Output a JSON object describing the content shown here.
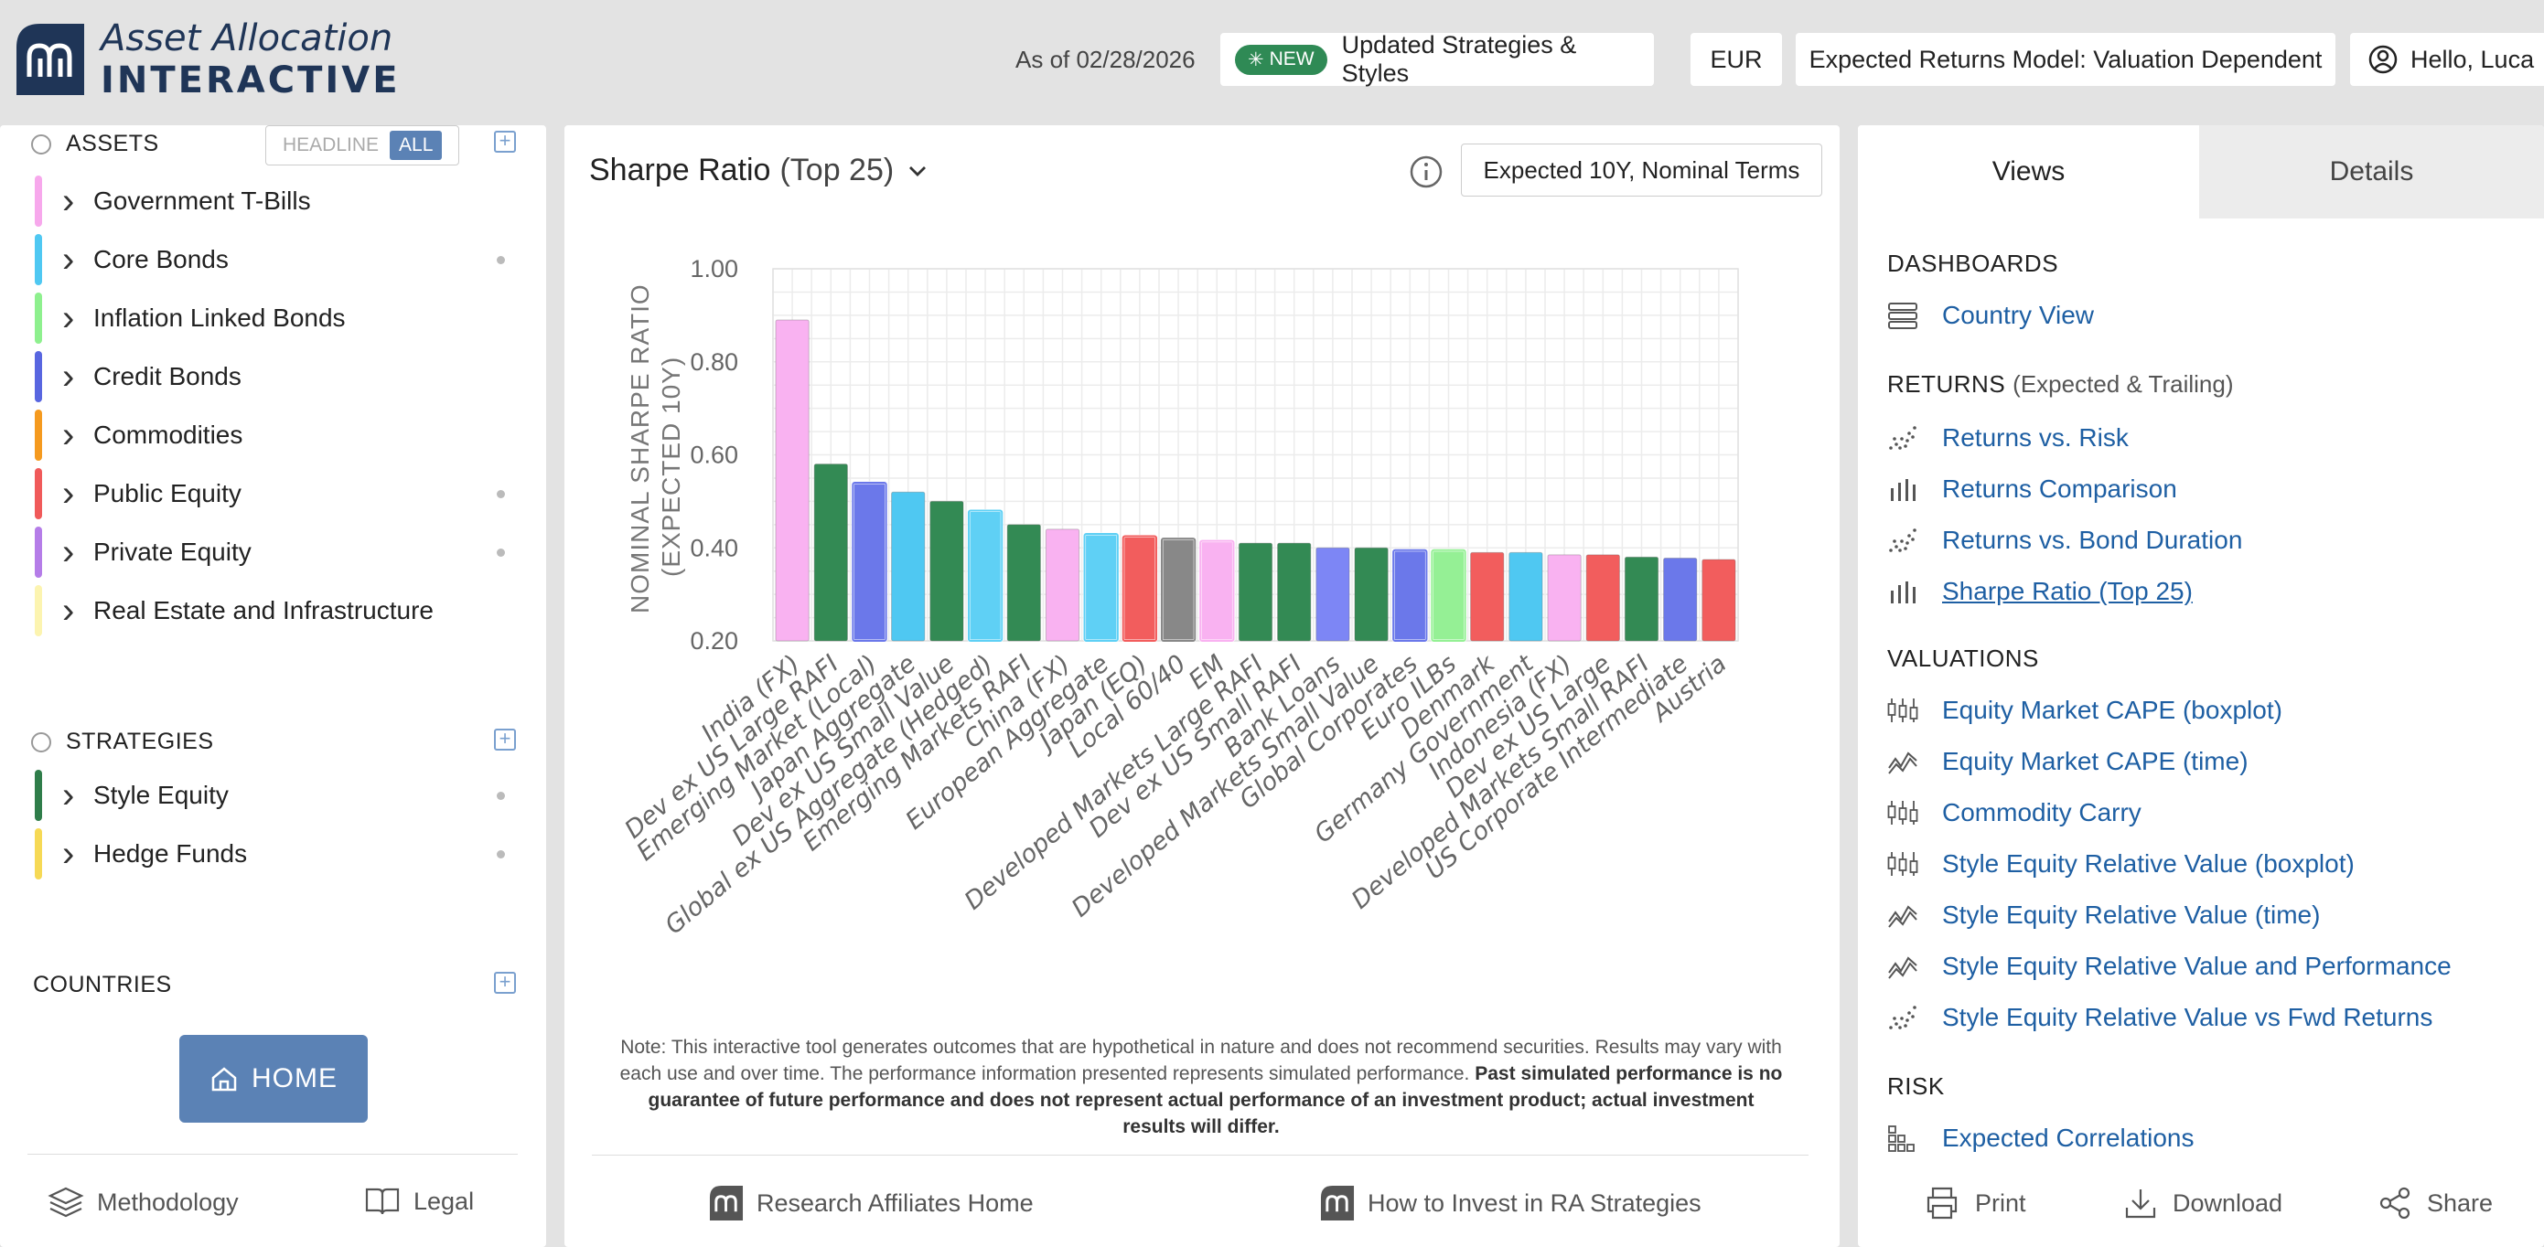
{
  "header": {
    "logo_line1": "Asset Allocation",
    "logo_line2": "INTERACTIVE",
    "as_of": "As of 02/28/2026",
    "new_badge": "NEW",
    "updated_label": "Updated Strategies & Styles",
    "currency": "EUR",
    "model_label": "Expected Returns Model: Valuation Dependent",
    "user_greeting": "Hello, Luca",
    "brand_color": "#1f3557"
  },
  "left": {
    "assets_title": "ASSETS",
    "toggle_headline": "HEADLINE",
    "toggle_all": "ALL",
    "assets": [
      {
        "label": "Government T-Bills",
        "color": "#f7a8ec",
        "dot": false
      },
      {
        "label": "Core Bonds",
        "color": "#4fc8f2",
        "dot": true
      },
      {
        "label": "Inflation Linked Bonds",
        "color": "#8ef08e",
        "dot": false
      },
      {
        "label": "Credit Bonds",
        "color": "#5866e0",
        "dot": false
      },
      {
        "label": "Commodities",
        "color": "#f59a1f",
        "dot": false
      },
      {
        "label": "Public Equity",
        "color": "#f05a5a",
        "dot": true
      },
      {
        "label": "Private Equity",
        "color": "#b57de8",
        "dot": true
      },
      {
        "label": "Real Estate and Infrastructure",
        "color": "#fcf4b0",
        "dot": false
      }
    ],
    "strategies_title": "STRATEGIES",
    "strategies": [
      {
        "label": "Style Equity",
        "color": "#2f7d4a",
        "dot": true
      },
      {
        "label": "Hedge Funds",
        "color": "#f6d955",
        "dot": true
      }
    ],
    "countries_title": "COUNTRIES",
    "home_label": "HOME",
    "methodology_label": "Methodology",
    "legal_label": "Legal"
  },
  "center": {
    "title": "Sharpe Ratio",
    "title_suffix": "(Top 25)",
    "term_button": "Expected 10Y, Nominal Terms",
    "note_plain": "Note: This interactive tool generates outcomes that are hypothetical in nature and does not recommend securities. Results may vary with each use and over time. The performance information presented represents simulated performance.",
    "note_bold": "Past simulated performance is no guarantee of future performance and does not represent actual performance of an investment product; actual investment results will differ.",
    "link_home": "Research Affiliates Home",
    "link_invest": "How to Invest in RA Strategies"
  },
  "chart_data": {
    "type": "bar",
    "ylabel_line1": "NOMINAL SHARPE RATIO",
    "ylabel_line2": "(EXPECTED 10Y)",
    "ylim": [
      0.2,
      1.0
    ],
    "yticks": [
      "1.00",
      "0.80",
      "0.60",
      "0.40",
      "0.20"
    ],
    "ytick_values": [
      1.0,
      0.8,
      0.6,
      0.4,
      0.2
    ],
    "categories": [
      "India (FX)",
      "Dev ex US Large RAFI",
      "Emerging Market (Local)",
      "Japan Aggregate",
      "Dev ex US Small Value",
      "Global ex US Aggregate (Hedged)",
      "Emerging Markets RAFI",
      "China (FX)",
      "European Aggregate",
      "Japan (EQ)",
      "Local 60/40",
      "EM",
      "Developed Markets Large RAFI",
      "Dev ex US Small RAFI",
      "Bank Loans",
      "Developed Markets Small Value",
      "Global Corporates",
      "Euro ILBs",
      "Denmark",
      "Germany Government",
      "Indonesia (FX)",
      "Dev ex US Large",
      "Developed Markets Small RAFI",
      "US Corporate Intermediate",
      "Austria"
    ],
    "values": [
      0.89,
      0.58,
      0.54,
      0.52,
      0.5,
      0.48,
      0.45,
      0.44,
      0.43,
      0.425,
      0.42,
      0.415,
      0.41,
      0.41,
      0.4,
      0.4,
      0.395,
      0.395,
      0.39,
      0.39,
      0.385,
      0.385,
      0.38,
      0.378,
      0.375
    ],
    "colors": [
      "#f9b2f1",
      "#338a54",
      "#6b78ea",
      "#4fc8f2",
      "#338a54",
      "#5fd0f5",
      "#338a54",
      "#f9b2f1",
      "#5fd0f5",
      "#f25d5d",
      "#888888",
      "#f9b2f1",
      "#338a54",
      "#338a54",
      "#7d86f5",
      "#338a54",
      "#6b78ea",
      "#95f095",
      "#f25d5d",
      "#4fc8f2",
      "#f9b2f1",
      "#f25d5d",
      "#338a54",
      "#6b78ea",
      "#f25d5d"
    ],
    "outlined": [
      false,
      false,
      true,
      false,
      false,
      true,
      false,
      false,
      true,
      true,
      true,
      true,
      false,
      false,
      false,
      false,
      true,
      true,
      false,
      false,
      false,
      false,
      false,
      false,
      false
    ],
    "grid": true
  },
  "right": {
    "tab_views": "Views",
    "tab_details": "Details",
    "dashboards_title": "DASHBOARDS",
    "dashboards": [
      {
        "label": "Country View",
        "icon": "table-stack-icon"
      }
    ],
    "returns_title": "RETURNS",
    "returns_sub": "(Expected & Trailing)",
    "returns": [
      {
        "label": "Returns vs. Risk",
        "icon": "scatter-icon"
      },
      {
        "label": "Returns Comparison",
        "icon": "bar-chart-icon"
      },
      {
        "label": "Returns vs. Bond Duration",
        "icon": "scatter-icon"
      },
      {
        "label": "Sharpe Ratio (Top 25)",
        "icon": "bar-chart-icon",
        "active": true
      }
    ],
    "valuations_title": "VALUATIONS",
    "valuations": [
      {
        "label": "Equity Market CAPE (boxplot)",
        "icon": "boxplot-icon"
      },
      {
        "label": "Equity Market CAPE (time)",
        "icon": "line-icon"
      },
      {
        "label": "Commodity Carry",
        "icon": "boxplot-icon"
      },
      {
        "label": "Style Equity Relative Value (boxplot)",
        "icon": "boxplot-icon"
      },
      {
        "label": "Style Equity Relative Value (time)",
        "icon": "line-icon"
      },
      {
        "label": "Style Equity Relative Value and Performance",
        "icon": "line-icon"
      },
      {
        "label": "Style Equity Relative Value vs Fwd Returns",
        "icon": "scatter-icon"
      }
    ],
    "risk_title": "RISK",
    "risk": [
      {
        "label": "Expected Correlations",
        "icon": "matrix-icon"
      }
    ],
    "print_label": "Print",
    "download_label": "Download",
    "share_label": "Share",
    "link_color": "#1e5fa3"
  }
}
